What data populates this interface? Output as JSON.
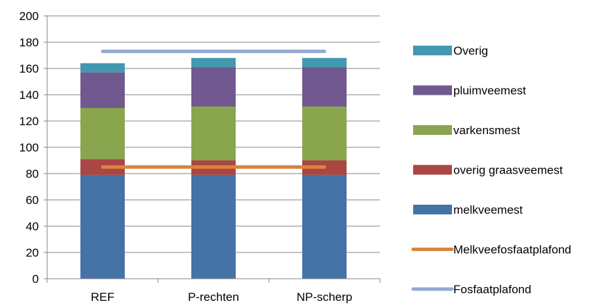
{
  "chart_data": {
    "type": "bar",
    "stacked": true,
    "categories": [
      "REF",
      "P-rechten",
      "NP-scherp"
    ],
    "series": [
      {
        "name": "melkveemest",
        "color": "#4572A7",
        "values": [
          79,
          79,
          79
        ]
      },
      {
        "name": "overig graasveemest",
        "color": "#AA4643",
        "values": [
          12,
          11,
          11
        ]
      },
      {
        "name": "varkensmest",
        "color": "#89A54E",
        "values": [
          39,
          41,
          41
        ]
      },
      {
        "name": "pluimveemest",
        "color": "#71588F",
        "values": [
          27,
          30,
          30
        ]
      },
      {
        "name": "Overig",
        "color": "#4198AF",
        "values": [
          7,
          7,
          7
        ]
      }
    ],
    "lines": [
      {
        "name": "Melkveefosfaatplafond",
        "color": "#DB843D",
        "value": 85
      },
      {
        "name": "Fosfaatplafond",
        "color": "#93A9CF",
        "value": 173
      }
    ],
    "ylim": [
      0,
      200
    ],
    "yticks": [
      "0",
      "20",
      "40",
      "60",
      "80",
      "100",
      "120",
      "140",
      "160",
      "180",
      "200"
    ],
    "grid": true,
    "legend_position": "right",
    "legend": [
      "Overig",
      "pluimveemest",
      "varkensmest",
      "overig graasveemest",
      "melkveemest",
      "Melkveefosfaatplafond",
      "Fosfaatplafond"
    ]
  }
}
